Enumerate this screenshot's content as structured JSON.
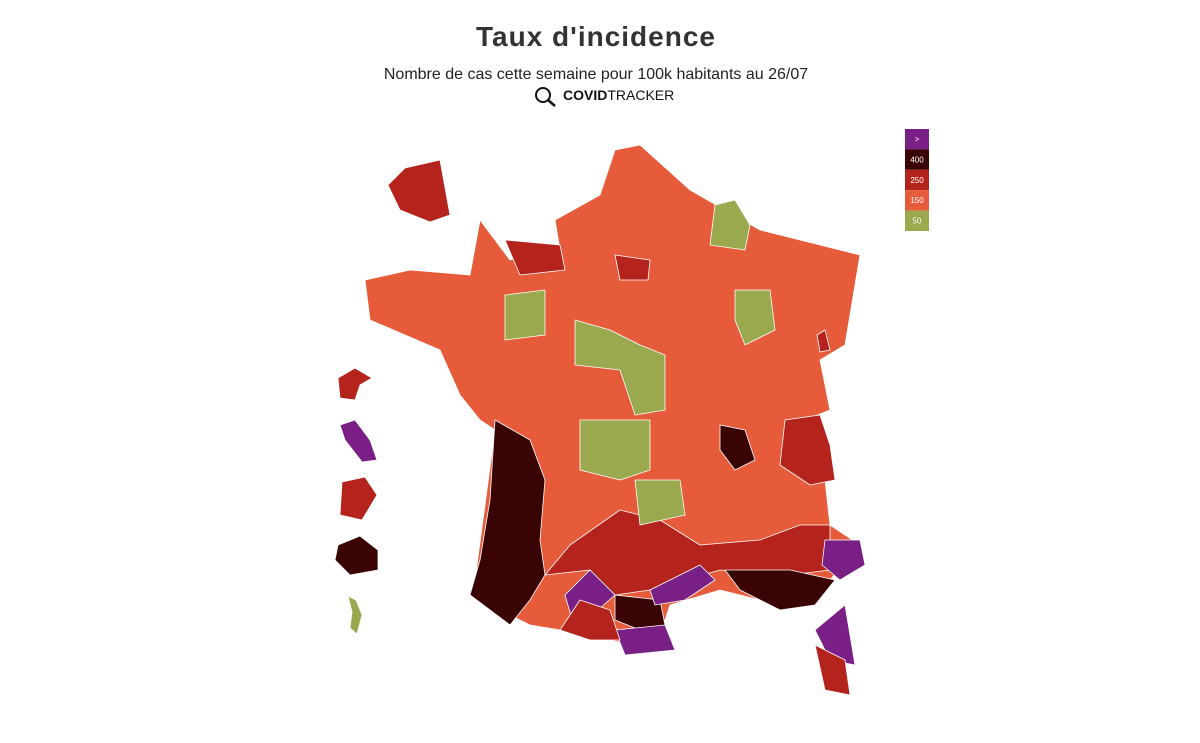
{
  "header": {
    "title": "Taux d'incidence",
    "subtitle": "Nombre de cas cette semaine pour 100k habitants au 26/07",
    "brand": {
      "bold": "COVID",
      "light": "TRACKER"
    }
  },
  "legend": [
    {
      "label": ">",
      "color": "#7a1f86"
    },
    {
      "label": "400",
      "color": "#3a0404"
    },
    {
      "label": "250",
      "color": "#b5241c"
    },
    {
      "label": "150",
      "color": "#e65c3a"
    },
    {
      "label": "50",
      "color": "#9aa94e"
    }
  ]
}
